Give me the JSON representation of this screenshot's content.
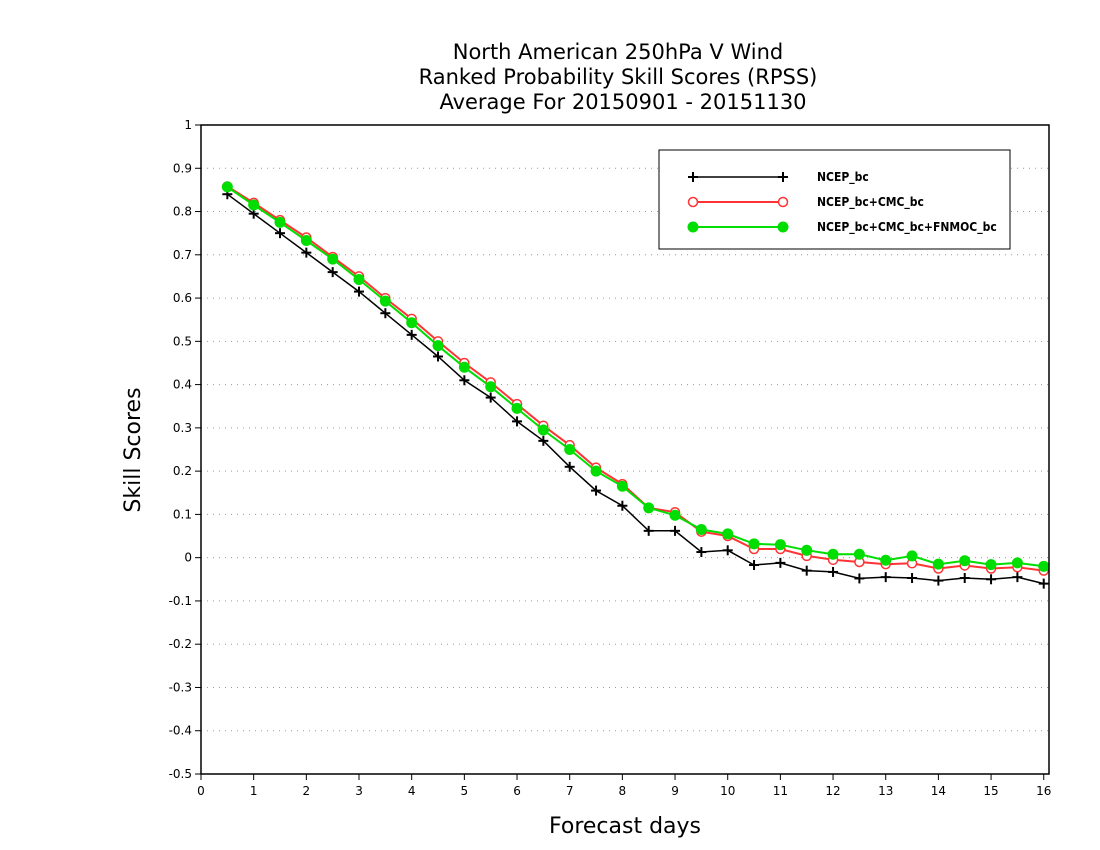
{
  "chart_data": {
    "type": "line",
    "title_lines": [
      "North American 250hPa V Wind",
      "Ranked Probability Skill Scores (RPSS)",
      "Average For 20150901 - 20151130"
    ],
    "xlabel": "Forecast days",
    "ylabel": "Skill Scores",
    "xlim": [
      0,
      16.1
    ],
    "ylim": [
      -0.5,
      1
    ],
    "x_ticks": [
      0,
      1,
      2,
      3,
      4,
      5,
      6,
      7,
      8,
      9,
      10,
      11,
      12,
      13,
      14,
      15,
      16
    ],
    "y_ticks": [
      -0.5,
      -0.4,
      -0.3,
      -0.2,
      -0.1,
      0,
      0.1,
      0.2,
      0.3,
      0.4,
      0.5,
      0.6,
      0.7,
      0.8,
      0.9,
      1
    ],
    "y_tick_labels": [
      "-0.5",
      "-0.4",
      "-0.3",
      "-0.2",
      "-0.1",
      "0",
      "0.1",
      "0.2",
      "0.3",
      "0.4",
      "0.5",
      "0.6",
      "0.7",
      "0.8",
      "0.9",
      "1"
    ],
    "grid": "horizontal-dotted",
    "legend_position": "top-right",
    "x": [
      0.5,
      1,
      1.5,
      2,
      2.5,
      3,
      3.5,
      4,
      4.5,
      5,
      5.5,
      6,
      6.5,
      7,
      7.5,
      8,
      8.5,
      9,
      9.5,
      10,
      10.5,
      11,
      11.5,
      12,
      12.5,
      13,
      13.5,
      14,
      14.5,
      15,
      15.5,
      16
    ],
    "series": [
      {
        "name": "NCEP_bc",
        "color": "#000000",
        "marker": "plus",
        "values": [
          0.84,
          0.795,
          0.75,
          0.705,
          0.66,
          0.615,
          0.565,
          0.515,
          0.465,
          0.41,
          0.37,
          0.315,
          0.27,
          0.21,
          0.155,
          0.12,
          0.062,
          0.062,
          0.013,
          0.017,
          -0.017,
          -0.012,
          -0.03,
          -0.033,
          -0.048,
          -0.045,
          -0.047,
          -0.053,
          -0.047,
          -0.05,
          -0.045,
          -0.06
        ]
      },
      {
        "name": "NCEP_bc+CMC_bc",
        "color": "#ff3333",
        "marker": "open-circle",
        "values": [
          0.858,
          0.82,
          0.78,
          0.74,
          0.695,
          0.65,
          0.6,
          0.552,
          0.5,
          0.45,
          0.405,
          0.355,
          0.305,
          0.26,
          0.208,
          0.17,
          0.115,
          0.105,
          0.06,
          0.05,
          0.02,
          0.02,
          0.004,
          -0.005,
          -0.01,
          -0.015,
          -0.013,
          -0.025,
          -0.018,
          -0.025,
          -0.022,
          -0.03
        ]
      },
      {
        "name": "NCEP_bc+CMC_bc+FNMOC_bc",
        "color": "#00dd00",
        "marker": "filled-circle",
        "values": [
          0.857,
          0.815,
          0.775,
          0.733,
          0.69,
          0.643,
          0.593,
          0.543,
          0.49,
          0.44,
          0.395,
          0.345,
          0.295,
          0.25,
          0.2,
          0.165,
          0.115,
          0.098,
          0.065,
          0.055,
          0.032,
          0.03,
          0.017,
          0.008,
          0.008,
          -0.006,
          0.004,
          -0.015,
          -0.007,
          -0.016,
          -0.012,
          -0.02
        ]
      }
    ]
  }
}
